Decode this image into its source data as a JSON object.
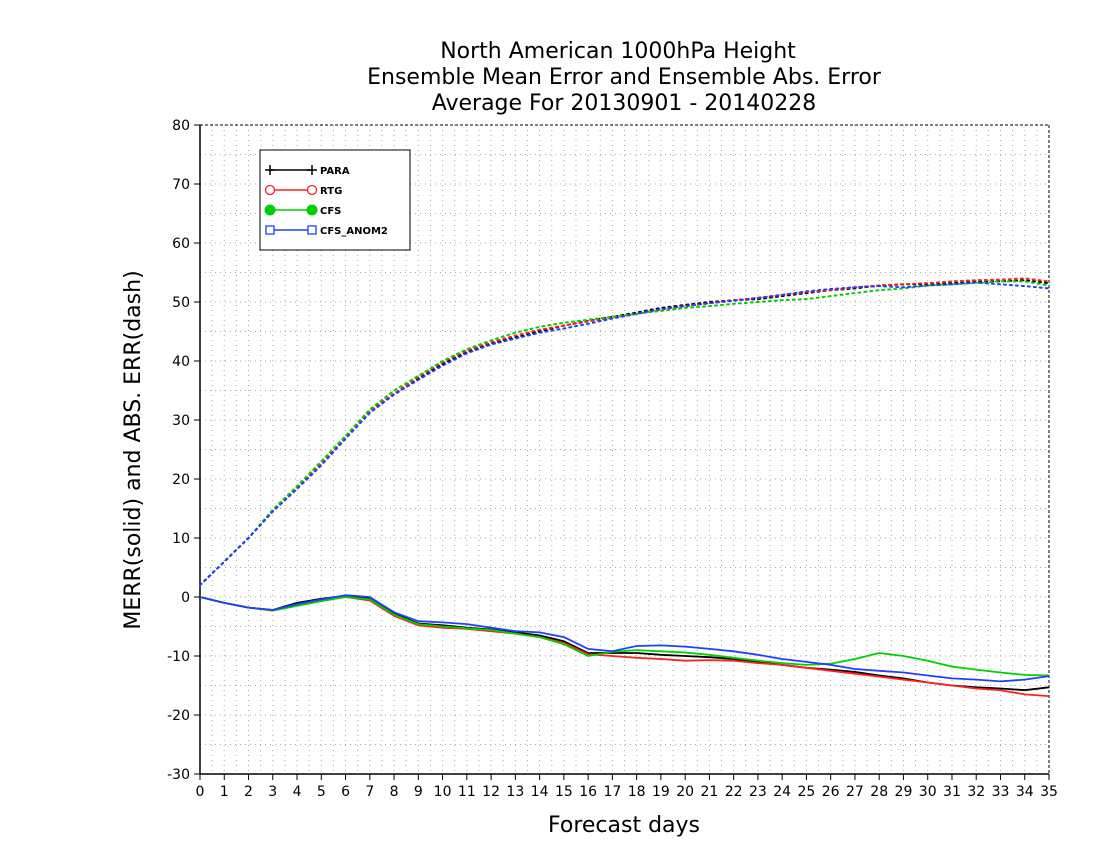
{
  "chart_data": {
    "type": "line",
    "title": [
      "North American 1000hPa Height",
      "Ensemble Mean Error and Ensemble Abs. Error",
      "Average For 20130901 - 20140228"
    ],
    "xlabel": "Forecast days",
    "ylabel": "MERR(solid) and ABS. ERR(dash)",
    "xlim": [
      0,
      35
    ],
    "ylim": [
      -30,
      80
    ],
    "xticks": [
      0,
      1,
      2,
      3,
      4,
      5,
      6,
      7,
      8,
      9,
      10,
      11,
      12,
      13,
      14,
      15,
      16,
      17,
      18,
      19,
      20,
      21,
      22,
      23,
      24,
      25,
      26,
      27,
      28,
      29,
      30,
      31,
      32,
      33,
      34,
      35
    ],
    "yticks": [
      -30,
      -20,
      -10,
      0,
      10,
      20,
      30,
      40,
      50,
      60,
      70,
      80
    ],
    "grid": true,
    "legend_position": "top-left",
    "x": [
      0,
      1,
      2,
      3,
      4,
      5,
      6,
      7,
      8,
      9,
      10,
      11,
      12,
      13,
      14,
      15,
      16,
      17,
      18,
      19,
      20,
      21,
      22,
      23,
      24,
      25,
      26,
      27,
      28,
      29,
      30,
      31,
      32,
      33,
      34,
      35
    ],
    "series": [
      {
        "name": "PARA",
        "color": "#000000",
        "marker": "plus",
        "merr": [
          0,
          -1,
          -1.8,
          -2.2,
          -1,
          -0.3,
          0.2,
          -0.2,
          -2.8,
          -4.5,
          -4.8,
          -5.2,
          -5.5,
          -6,
          -6.5,
          -7.5,
          -9.5,
          -9.5,
          -9.5,
          -9.8,
          -10,
          -10.2,
          -10.5,
          -11,
          -11.5,
          -12,
          -12.3,
          -12.7,
          -13.3,
          -13.8,
          -14.5,
          -15,
          -15.3,
          -15.5,
          -15.8,
          -15.3
        ],
        "abs_err": [
          2,
          6,
          10,
          14.5,
          18.5,
          22.5,
          27,
          31.5,
          34.5,
          37,
          39.5,
          41.5,
          43,
          44,
          45,
          46,
          46.8,
          47.5,
          48.2,
          49,
          49.5,
          50,
          50.3,
          50.5,
          51,
          51.5,
          52,
          52.3,
          52.8,
          53,
          53,
          53.2,
          53.5,
          53.5,
          53.7,
          53.2
        ]
      },
      {
        "name": "RTG",
        "color": "#ff2020",
        "marker": "circle",
        "merr": [
          0,
          -1,
          -1.8,
          -2.3,
          -1.3,
          -0.5,
          0,
          -0.6,
          -3.2,
          -4.8,
          -5.2,
          -5.4,
          -5.8,
          -6.2,
          -6.8,
          -7.8,
          -9.7,
          -10,
          -10.3,
          -10.5,
          -10.8,
          -10.7,
          -10.8,
          -11.2,
          -11.5,
          -12,
          -12.5,
          -13,
          -13.5,
          -14,
          -14.5,
          -15,
          -15.5,
          -15.8,
          -16.5,
          -16.8
        ],
        "abs_err": [
          2,
          6,
          10,
          14.5,
          18.5,
          22.7,
          27,
          31.4,
          34.5,
          37.3,
          39.8,
          41.8,
          43.2,
          44.3,
          45.3,
          46,
          46.7,
          47.3,
          48,
          48.7,
          49.3,
          49.8,
          50.3,
          50.7,
          51.2,
          51.7,
          52,
          52.5,
          52.8,
          53,
          53.2,
          53.5,
          53.7,
          53.8,
          54,
          53.5
        ]
      },
      {
        "name": "CFS",
        "color": "#00d000",
        "marker": "dot",
        "merr": [
          0,
          -1,
          -1.8,
          -2.3,
          -1.5,
          -0.7,
          0,
          -0.4,
          -3,
          -4.6,
          -5,
          -5.3,
          -5.6,
          -6.2,
          -6.8,
          -8,
          -10,
          -9.3,
          -9,
          -9.2,
          -9.4,
          -9.8,
          -10.3,
          -10.8,
          -11.2,
          -11.5,
          -11.3,
          -10.5,
          -9.5,
          -10,
          -10.8,
          -11.8,
          -12.3,
          -12.8,
          -13.2,
          -13.3
        ],
        "abs_err": [
          2,
          6,
          10,
          14.8,
          18.8,
          23,
          27.3,
          31.8,
          35,
          37.5,
          40,
          42,
          43.5,
          44.8,
          45.8,
          46.5,
          47,
          47.5,
          48,
          48.5,
          49,
          49.3,
          49.7,
          50,
          50.3,
          50.5,
          51,
          51.5,
          52,
          52.3,
          52.8,
          53,
          53.2,
          53.5,
          53.5,
          52.8
        ]
      },
      {
        "name": "CFS_ANOM2",
        "color": "#2040ff",
        "marker": "square",
        "merr": [
          0,
          -1,
          -1.8,
          -2.2,
          -1.2,
          -0.4,
          0.3,
          0,
          -2.6,
          -4.1,
          -4.3,
          -4.6,
          -5.2,
          -5.8,
          -6,
          -6.8,
          -8.8,
          -9.2,
          -8.3,
          -8.2,
          -8.4,
          -8.8,
          -9.2,
          -9.8,
          -10.5,
          -11,
          -11.5,
          -12.2,
          -12.5,
          -12.8,
          -13.3,
          -13.8,
          -14,
          -14.3,
          -14,
          -13.4
        ],
        "abs_err": [
          2,
          6,
          10,
          14.5,
          18.3,
          22.3,
          26.8,
          31.2,
          34.3,
          36.8,
          39.2,
          41.3,
          42.8,
          43.8,
          44.8,
          45.5,
          46.3,
          47.2,
          48,
          48.8,
          49.3,
          49.8,
          50.2,
          50.7,
          51.2,
          51.8,
          52.2,
          52.5,
          52.7,
          52.5,
          52.8,
          53,
          53.3,
          53,
          52.7,
          52.3
        ]
      }
    ]
  }
}
